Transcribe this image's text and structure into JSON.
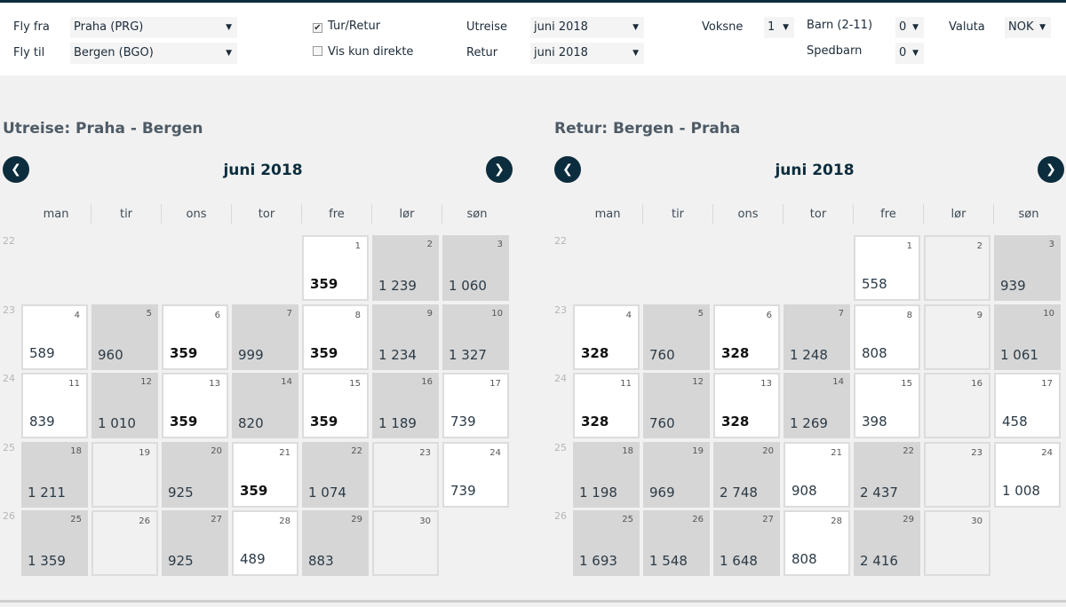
{
  "search": {
    "from_label": "Fly fra",
    "from_value": "Praha (PRG)",
    "to_label": "Fly til",
    "to_value": "Bergen (BGO)",
    "roundtrip_label": "Tur/Retur",
    "roundtrip_checked": true,
    "direct_label": "Vis kun direkte",
    "direct_checked": false,
    "out_label": "Utreise",
    "out_value": "juni 2018",
    "return_label": "Retur",
    "return_value": "juni 2018",
    "adults_label": "Voksne",
    "adults_value": "1",
    "children_label": "Barn (2-11)",
    "children_value": "0",
    "infants_label": "Spedbarn",
    "infants_value": "0",
    "currency_label": "Valuta",
    "currency_value": "NOK"
  },
  "weekdays": [
    "man",
    "tir",
    "ons",
    "tor",
    "fre",
    "lør",
    "søn"
  ],
  "weeks": [
    "22",
    "23",
    "24",
    "25",
    "26"
  ],
  "outbound": {
    "title": "Utreise:  Praha - Bergen",
    "month": "juni 2018",
    "days": [
      {
        "d": "1",
        "p": "359",
        "s": "w",
        "cheap": true
      },
      {
        "d": "2",
        "p": "1 239",
        "s": "g",
        "cheap": false
      },
      {
        "d": "3",
        "p": "1 060",
        "s": "g",
        "cheap": false
      },
      {
        "d": "4",
        "p": "589",
        "s": "w",
        "cheap": false
      },
      {
        "d": "5",
        "p": "960",
        "s": "g",
        "cheap": false
      },
      {
        "d": "6",
        "p": "359",
        "s": "w",
        "cheap": true
      },
      {
        "d": "7",
        "p": "999",
        "s": "g",
        "cheap": false
      },
      {
        "d": "8",
        "p": "359",
        "s": "w",
        "cheap": true
      },
      {
        "d": "9",
        "p": "1 234",
        "s": "g",
        "cheap": false
      },
      {
        "d": "10",
        "p": "1 327",
        "s": "g",
        "cheap": false
      },
      {
        "d": "11",
        "p": "839",
        "s": "w",
        "cheap": false
      },
      {
        "d": "12",
        "p": "1 010",
        "s": "g",
        "cheap": false
      },
      {
        "d": "13",
        "p": "359",
        "s": "w",
        "cheap": true
      },
      {
        "d": "14",
        "p": "820",
        "s": "g",
        "cheap": false
      },
      {
        "d": "15",
        "p": "359",
        "s": "w",
        "cheap": true
      },
      {
        "d": "16",
        "p": "1 189",
        "s": "g",
        "cheap": false
      },
      {
        "d": "17",
        "p": "739",
        "s": "w",
        "cheap": false
      },
      {
        "d": "18",
        "p": "1 211",
        "s": "g",
        "cheap": false
      },
      {
        "d": "19",
        "p": "",
        "s": "e",
        "cheap": false
      },
      {
        "d": "20",
        "p": "925",
        "s": "g",
        "cheap": false
      },
      {
        "d": "21",
        "p": "359",
        "s": "w",
        "cheap": true
      },
      {
        "d": "22",
        "p": "1 074",
        "s": "g",
        "cheap": false
      },
      {
        "d": "23",
        "p": "",
        "s": "e",
        "cheap": false
      },
      {
        "d": "24",
        "p": "739",
        "s": "w",
        "cheap": false
      },
      {
        "d": "25",
        "p": "1 359",
        "s": "g",
        "cheap": false
      },
      {
        "d": "26",
        "p": "",
        "s": "e",
        "cheap": false
      },
      {
        "d": "27",
        "p": "925",
        "s": "g",
        "cheap": false
      },
      {
        "d": "28",
        "p": "489",
        "s": "w",
        "cheap": false
      },
      {
        "d": "29",
        "p": "883",
        "s": "g",
        "cheap": false
      },
      {
        "d": "30",
        "p": "",
        "s": "e",
        "cheap": false
      }
    ]
  },
  "inbound": {
    "title": "Retur:  Bergen - Praha",
    "month": "juni 2018",
    "days": [
      {
        "d": "1",
        "p": "558",
        "s": "w",
        "cheap": false
      },
      {
        "d": "2",
        "p": "",
        "s": "e",
        "cheap": false
      },
      {
        "d": "3",
        "p": "939",
        "s": "g",
        "cheap": false
      },
      {
        "d": "4",
        "p": "328",
        "s": "w",
        "cheap": true
      },
      {
        "d": "5",
        "p": "760",
        "s": "g",
        "cheap": false
      },
      {
        "d": "6",
        "p": "328",
        "s": "w",
        "cheap": true
      },
      {
        "d": "7",
        "p": "1 248",
        "s": "g",
        "cheap": false
      },
      {
        "d": "8",
        "p": "808",
        "s": "w",
        "cheap": false
      },
      {
        "d": "9",
        "p": "",
        "s": "e",
        "cheap": false
      },
      {
        "d": "10",
        "p": "1 061",
        "s": "g",
        "cheap": false
      },
      {
        "d": "11",
        "p": "328",
        "s": "w",
        "cheap": true
      },
      {
        "d": "12",
        "p": "760",
        "s": "g",
        "cheap": false
      },
      {
        "d": "13",
        "p": "328",
        "s": "w",
        "cheap": true
      },
      {
        "d": "14",
        "p": "1 269",
        "s": "g",
        "cheap": false
      },
      {
        "d": "15",
        "p": "398",
        "s": "w",
        "cheap": false
      },
      {
        "d": "16",
        "p": "",
        "s": "e",
        "cheap": false
      },
      {
        "d": "17",
        "p": "458",
        "s": "w",
        "cheap": false
      },
      {
        "d": "18",
        "p": "1 198",
        "s": "g",
        "cheap": false
      },
      {
        "d": "19",
        "p": "969",
        "s": "g",
        "cheap": false
      },
      {
        "d": "20",
        "p": "2 748",
        "s": "g",
        "cheap": false
      },
      {
        "d": "21",
        "p": "908",
        "s": "w",
        "cheap": false
      },
      {
        "d": "22",
        "p": "2 437",
        "s": "g",
        "cheap": false
      },
      {
        "d": "23",
        "p": "",
        "s": "e",
        "cheap": false
      },
      {
        "d": "24",
        "p": "1 008",
        "s": "w",
        "cheap": false
      },
      {
        "d": "25",
        "p": "1 693",
        "s": "g",
        "cheap": false
      },
      {
        "d": "26",
        "p": "1 548",
        "s": "g",
        "cheap": false
      },
      {
        "d": "27",
        "p": "1 648",
        "s": "g",
        "cheap": false
      },
      {
        "d": "28",
        "p": "808",
        "s": "w",
        "cheap": false
      },
      {
        "d": "29",
        "p": "2 416",
        "s": "g",
        "cheap": false
      },
      {
        "d": "30",
        "p": "",
        "s": "e",
        "cheap": false
      }
    ]
  }
}
